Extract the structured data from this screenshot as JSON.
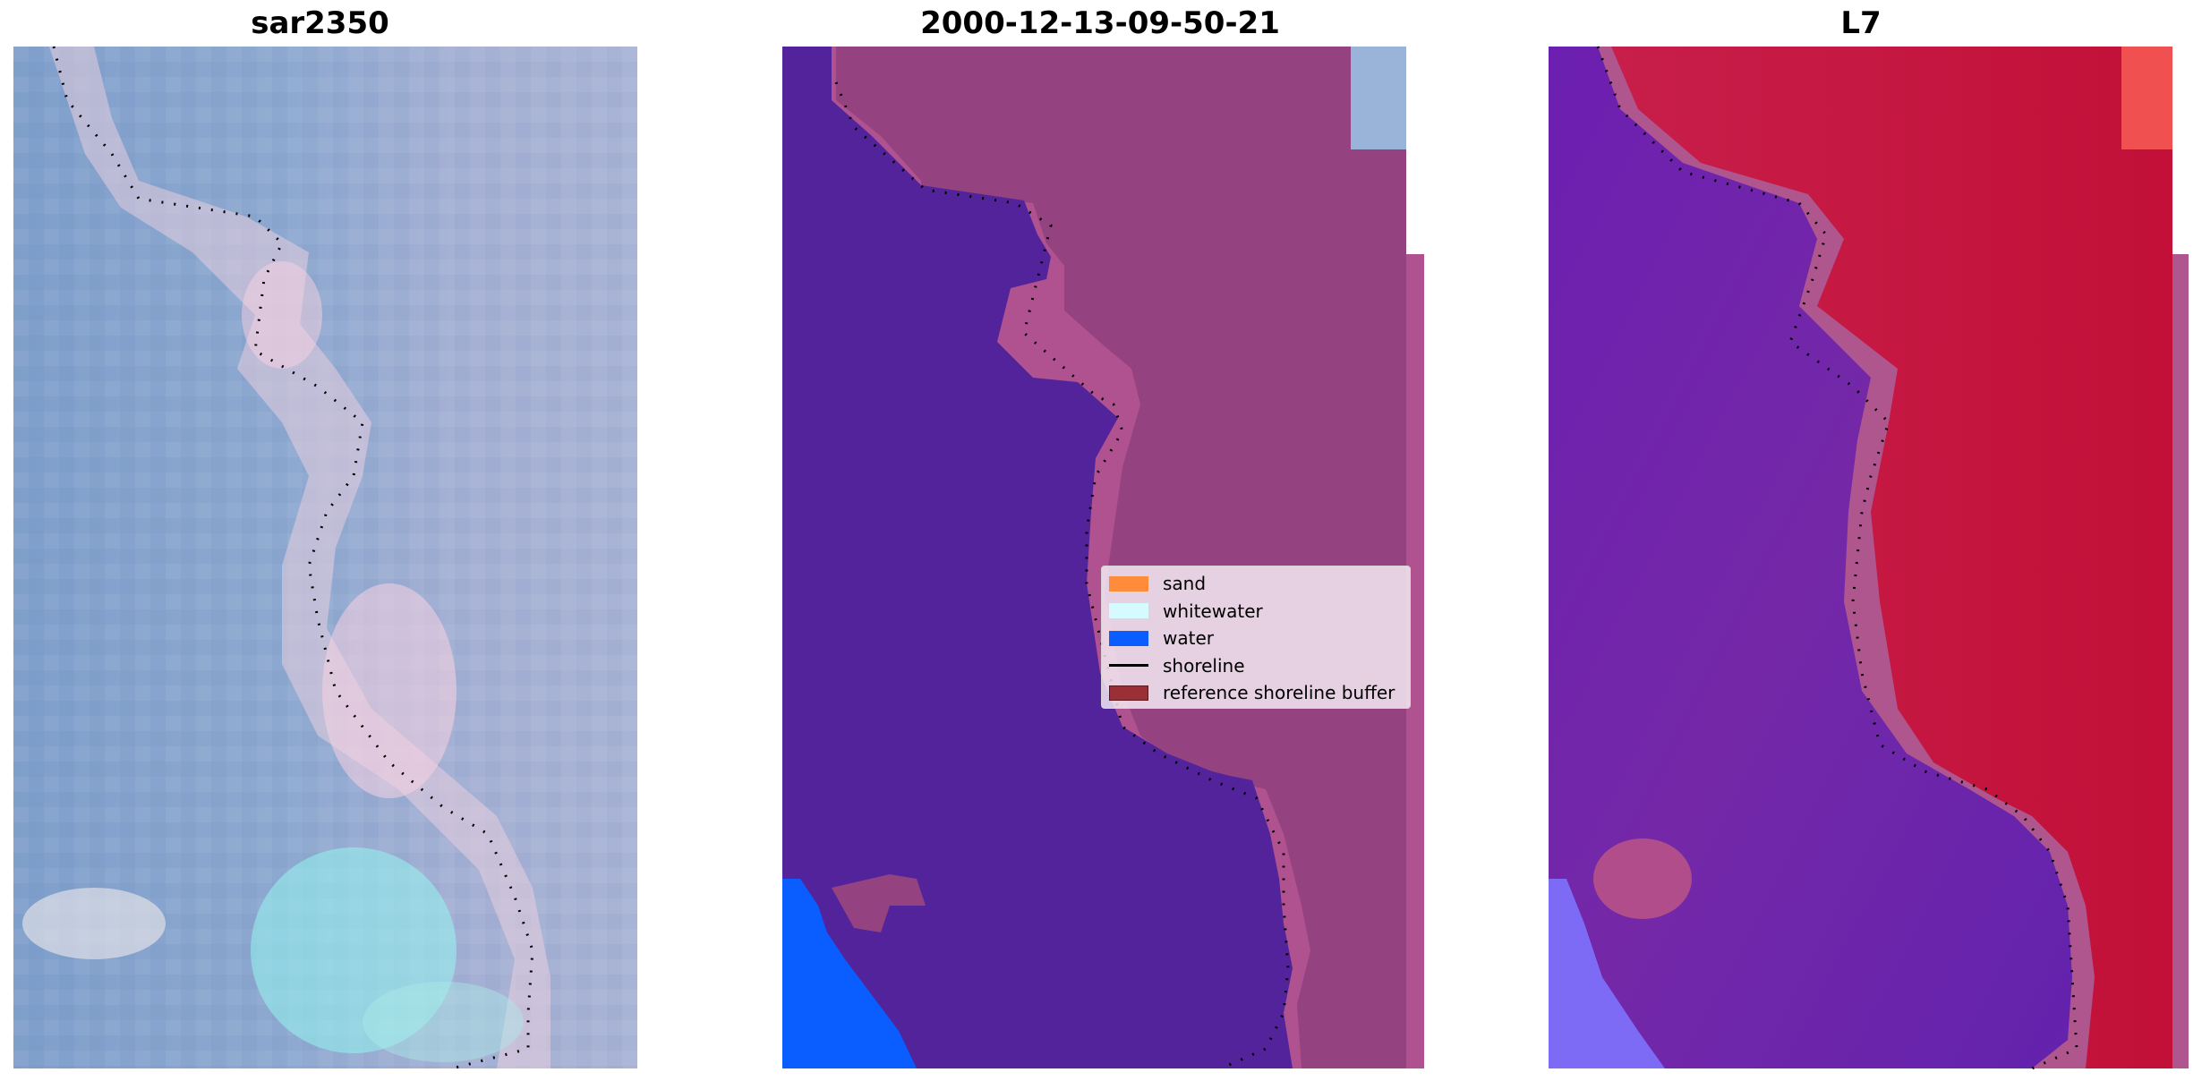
{
  "panels": [
    {
      "title": "sar2350",
      "image": "SAR RGB composite"
    },
    {
      "title": "2000-12-13-09-50-21",
      "image": "classification overlay"
    },
    {
      "title": "L7",
      "image": "index map"
    }
  ],
  "legend": {
    "items": [
      {
        "label": "sand",
        "color": "#ff8c3a",
        "kind": "patch"
      },
      {
        "label": "whitewater",
        "color": "#d6fbff",
        "kind": "patch"
      },
      {
        "label": "water",
        "color": "#0a5dff",
        "kind": "patch"
      },
      {
        "label": "shoreline",
        "color": "#000000",
        "kind": "line"
      },
      {
        "label": "reference shoreline buffer",
        "color": "#9b2f36",
        "kind": "patch"
      }
    ]
  },
  "colors": {
    "water_class": "#52239a",
    "land_class": "#944380",
    "buffer_pink": "#b05290",
    "open_water": "#0a5dff",
    "index_high": "#c0143c",
    "index_low": "#6a1ea8"
  }
}
